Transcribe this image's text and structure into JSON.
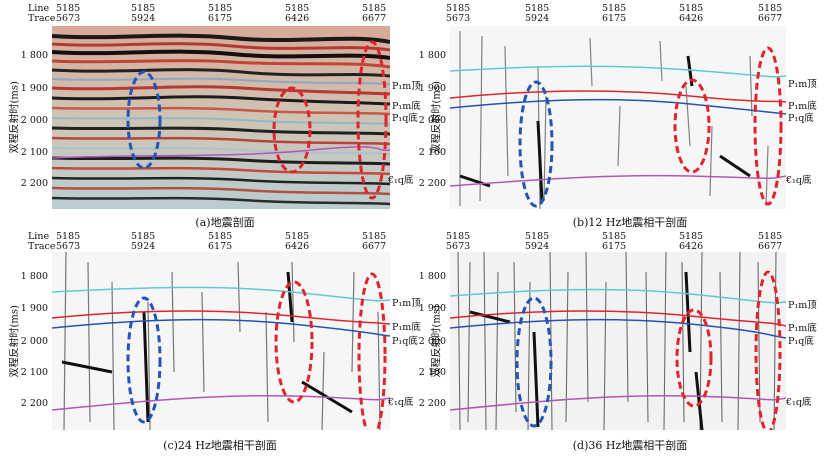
{
  "figure": {
    "header_line_label": "Line",
    "header_trace_label": "Trace",
    "y_axis_label": "双程反射时(ms)",
    "line_values": [
      "5185",
      "5185",
      "5185",
      "5185",
      "5185"
    ],
    "trace_values": [
      "5673",
      "5924",
      "6175",
      "6426",
      "6677"
    ],
    "y_ticks": [
      "1 800",
      "1 900",
      "2 000",
      "2 100",
      "2 200"
    ],
    "horizon_labels": {
      "p1m_top": "P₁m顶",
      "p1m_bottom": "P₁m底",
      "p1q_bottom": "P₁q底",
      "c1q_bottom": "€₁q底"
    },
    "colors": {
      "cyan_horizon": "#5fc8d8",
      "red_horizon": "#e0242b",
      "blue_horizon": "#2454b0",
      "magenta_horizon": "#b455b8",
      "blue_ellipse": "#2455b3",
      "red_ellipse": "#e0242b"
    }
  },
  "panels": [
    {
      "id": "a",
      "caption": "(a)地震剖面",
      "type": "seismic"
    },
    {
      "id": "b",
      "caption": "(b)12 Hz地震相干剖面",
      "type": "coherence"
    },
    {
      "id": "c",
      "caption": "(c)24 Hz地震相干剖面",
      "type": "coherence"
    },
    {
      "id": "d",
      "caption": "(d)36 Hz地震相干剖面",
      "type": "coherence"
    }
  ]
}
